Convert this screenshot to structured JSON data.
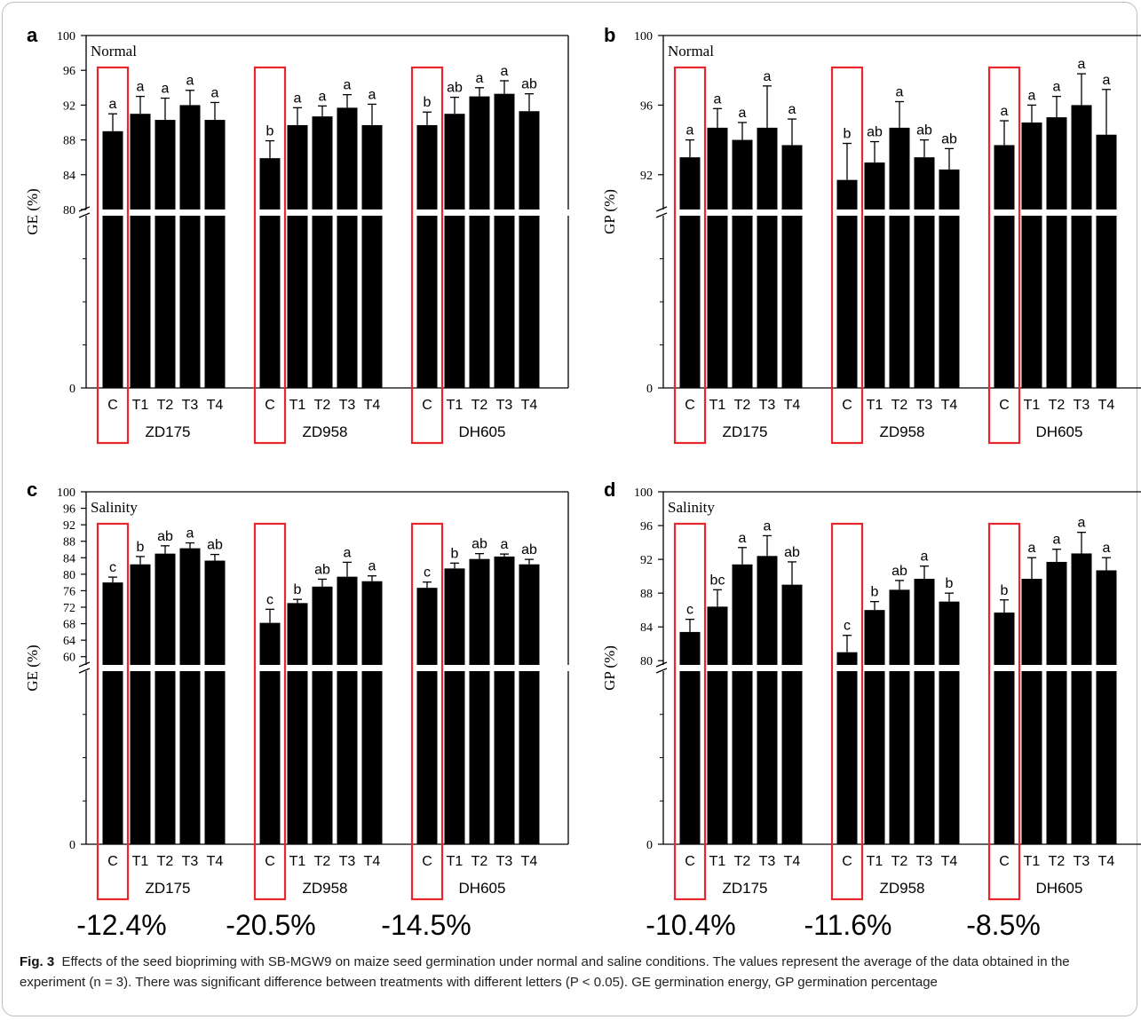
{
  "figure": {
    "caption_label": "Fig. 3",
    "caption_text": "Effects of the seed biopriming with SB-MGW9 on maize seed germination under normal and saline conditions. The values represent the average of the data obtained in the experiment (n = 3). There was significant difference between treatments with different letters (P < 0.05). GE germination energy, GP germination percentage"
  },
  "colors": {
    "bar": "#000000",
    "highlight": "#e8262d",
    "axis": "#000000"
  },
  "chart_data": [
    {
      "panel": "a",
      "type": "bar",
      "condition": "Normal",
      "ylabel": "GE (%)",
      "y_break": true,
      "upper_range": [
        80,
        100
      ],
      "upper_ticks": [
        "80",
        "84",
        "88",
        "92",
        "96",
        "100"
      ],
      "lower_ticks": [
        "0"
      ],
      "groups": [
        "ZD175",
        "ZD958",
        "DH605"
      ],
      "categories": [
        "C",
        "T1",
        "T2",
        "T3",
        "T4"
      ],
      "highlighted_category": "C",
      "values": [
        [
          89.0,
          91.0,
          90.3,
          92.0,
          90.3
        ],
        [
          85.9,
          89.7,
          90.7,
          91.7,
          89.7
        ],
        [
          89.7,
          91.0,
          93.0,
          93.3,
          91.3
        ]
      ],
      "errors": [
        [
          2.0,
          2.0,
          2.5,
          1.7,
          2.0
        ],
        [
          2.0,
          2.0,
          1.2,
          1.5,
          2.4
        ],
        [
          1.5,
          1.9,
          1.0,
          1.5,
          2.0
        ]
      ],
      "letters": [
        [
          "a",
          "a",
          "a",
          "a",
          "a"
        ],
        [
          "b",
          "a",
          "a",
          "a",
          "a"
        ],
        [
          "b",
          "ab",
          "a",
          "a",
          "ab"
        ]
      ],
      "change_labels": [
        "-12.4%",
        "-20.5%",
        "-14.5%"
      ]
    },
    {
      "panel": "b",
      "type": "bar",
      "condition": "Normal",
      "ylabel": "GP (%)",
      "y_break": true,
      "upper_range": [
        90,
        100
      ],
      "upper_ticks": [
        "92",
        "96",
        "100"
      ],
      "lower_ticks": [
        "0"
      ],
      "groups": [
        "ZD175",
        "ZD958",
        "DH605"
      ],
      "categories": [
        "C",
        "T1",
        "T2",
        "T3",
        "T4"
      ],
      "highlighted_category": "C",
      "values": [
        [
          93.0,
          94.7,
          94.0,
          94.7,
          93.7
        ],
        [
          91.7,
          92.7,
          94.7,
          93.0,
          92.3
        ],
        [
          93.7,
          95.0,
          95.3,
          96.0,
          94.3
        ]
      ],
      "errors": [
        [
          1.0,
          1.1,
          1.0,
          2.4,
          1.5
        ],
        [
          2.1,
          1.2,
          1.5,
          1.0,
          1.2
        ],
        [
          1.4,
          1.0,
          1.2,
          1.8,
          2.6
        ]
      ],
      "letters": [
        [
          "a",
          "a",
          "a",
          "a",
          "a"
        ],
        [
          "b",
          "ab",
          "a",
          "ab",
          "ab"
        ],
        [
          "a",
          "a",
          "a",
          "a",
          "a"
        ]
      ],
      "change_labels": []
    },
    {
      "panel": "c",
      "type": "bar",
      "condition": "Salinity",
      "ylabel": "GE (%)",
      "y_break": true,
      "upper_range": [
        58,
        100
      ],
      "upper_ticks": [
        "60",
        "64",
        "68",
        "72",
        "76",
        "80",
        "84",
        "88",
        "92",
        "96",
        "100"
      ],
      "lower_ticks": [
        "0"
      ],
      "groups": [
        "ZD175",
        "ZD958",
        "DH605"
      ],
      "categories": [
        "C",
        "T1",
        "T2",
        "T3",
        "T4"
      ],
      "highlighted_category": "C",
      "values": [
        [
          78.0,
          82.4,
          85.0,
          86.3,
          83.3
        ],
        [
          68.2,
          73.0,
          77.0,
          79.4,
          78.3
        ],
        [
          76.7,
          81.4,
          83.7,
          84.3,
          82.4
        ]
      ],
      "errors": [
        [
          1.3,
          1.9,
          1.9,
          1.3,
          1.5
        ],
        [
          3.3,
          0.9,
          1.8,
          3.5,
          1.3
        ],
        [
          1.4,
          1.3,
          1.3,
          0.6,
          1.2
        ]
      ],
      "letters": [
        [
          "c",
          "b",
          "ab",
          "a",
          "ab"
        ],
        [
          "c",
          "b",
          "ab",
          "a",
          "a"
        ],
        [
          "c",
          "b",
          "ab",
          "a",
          "ab"
        ]
      ],
      "change_labels": [
        "-12.4%",
        "-20.5%",
        "-14.5%"
      ]
    },
    {
      "panel": "d",
      "type": "bar",
      "condition": "Salinity",
      "ylabel": "GP (%)",
      "y_break": true,
      "upper_range": [
        79.5,
        100
      ],
      "upper_ticks": [
        "80",
        "84",
        "88",
        "92",
        "96",
        "100"
      ],
      "lower_ticks": [
        "0"
      ],
      "groups": [
        "ZD175",
        "ZD958",
        "DH605"
      ],
      "categories": [
        "C",
        "T1",
        "T2",
        "T3",
        "T4"
      ],
      "highlighted_category": "C",
      "values": [
        [
          83.4,
          86.4,
          91.4,
          92.4,
          89.0
        ],
        [
          81.0,
          86.0,
          88.4,
          89.7,
          87.0
        ],
        [
          85.7,
          89.7,
          91.7,
          92.7,
          90.7
        ]
      ],
      "errors": [
        [
          1.5,
          2.0,
          2.0,
          2.4,
          2.7
        ],
        [
          2.0,
          1.0,
          1.1,
          1.5,
          1.0
        ],
        [
          1.5,
          2.5,
          1.5,
          2.5,
          1.5
        ]
      ],
      "letters": [
        [
          "c",
          "bc",
          "a",
          "a",
          "ab"
        ],
        [
          "c",
          "b",
          "ab",
          "a",
          "b"
        ],
        [
          "b",
          "a",
          "a",
          "a",
          "a"
        ]
      ],
      "change_labels": [
        "-10.4%",
        "-11.6%",
        "-8.5%"
      ]
    }
  ]
}
